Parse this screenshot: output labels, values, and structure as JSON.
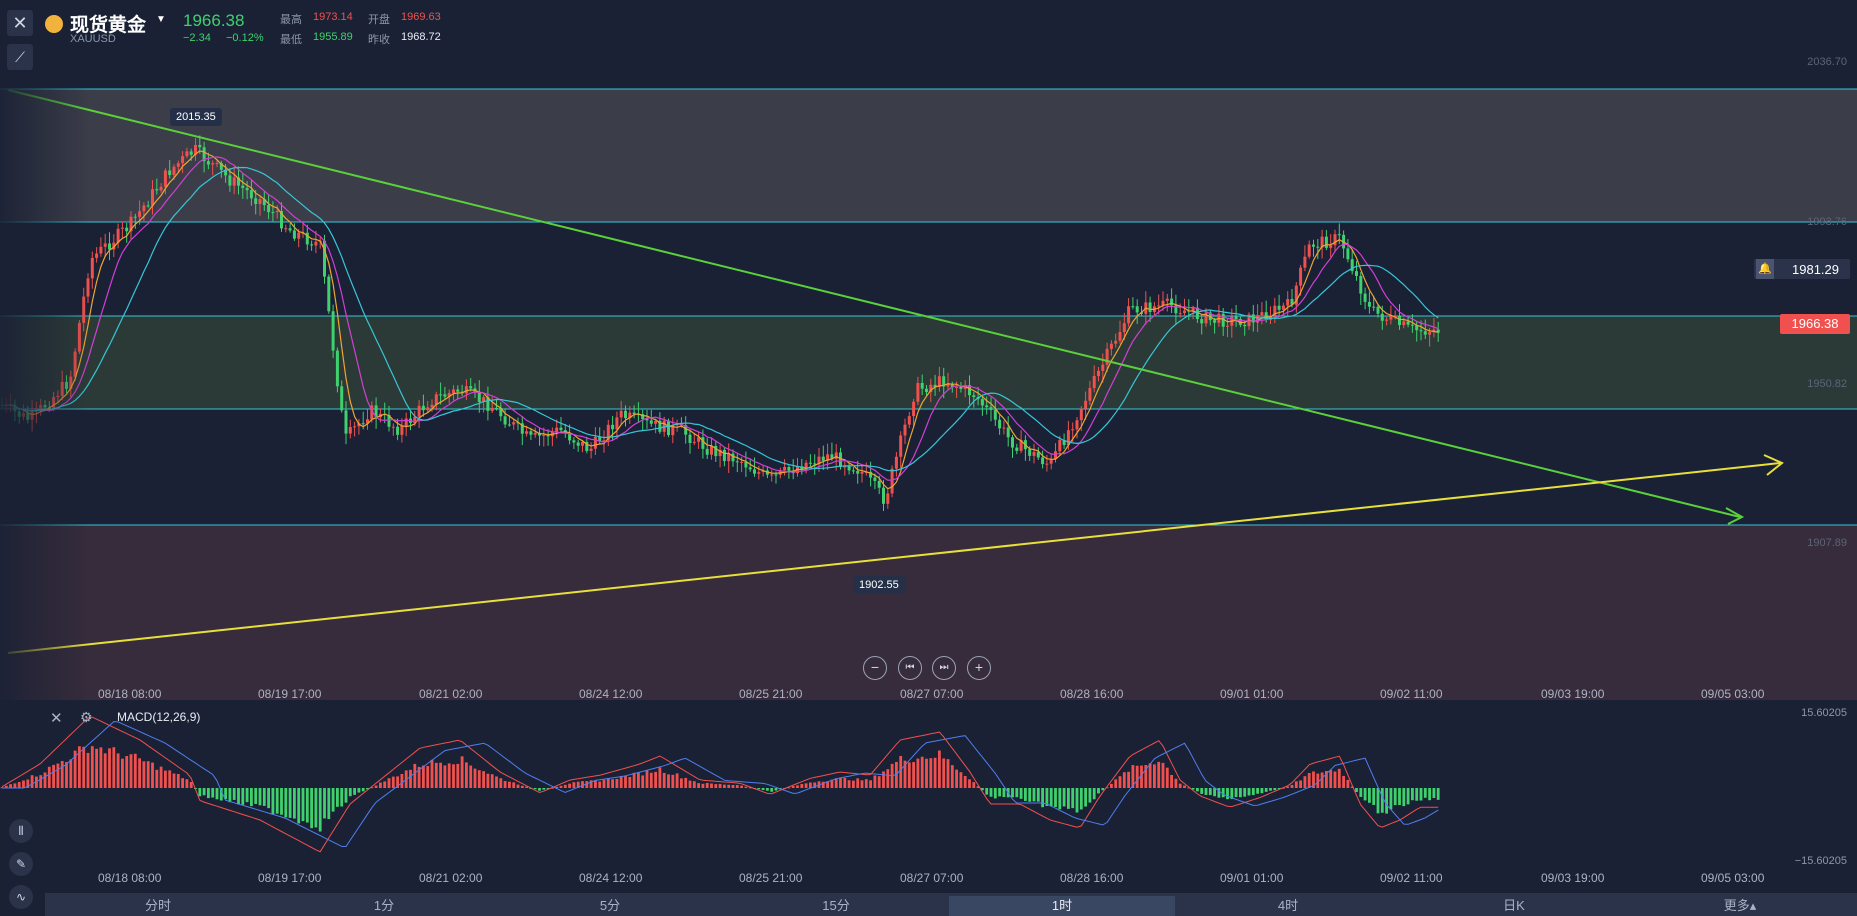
{
  "header": {
    "title": "现货黄金",
    "symbol": "XAUUSD",
    "price": "1966.38",
    "change": "−2.34",
    "change_pct": "−0.12%",
    "high_label": "最高",
    "high": "1973.14",
    "open_label": "开盘",
    "open": "1969.63",
    "low_label": "最低",
    "low": "1955.89",
    "prev_close_label": "昨收",
    "prev_close": "1968.72"
  },
  "price_axis": {
    "levels": [
      "2036.70",
      "1993.76",
      "1950.82",
      "1907.89"
    ],
    "alert_price": "1981.29",
    "current_price": "1966.38"
  },
  "annotations": {
    "high_marker": "2015.35",
    "low_marker": "1902.55"
  },
  "x_axis": [
    "08/18 08:00",
    "08/19 17:00",
    "08/21 02:00",
    "08/24 12:00",
    "08/25 21:00",
    "08/27 07:00",
    "08/28 16:00",
    "09/01 01:00",
    "09/02 11:00",
    "09/03 19:00",
    "09/05 03:00"
  ],
  "macd": {
    "label": "MACD(12,26,9)",
    "top": "15.60205",
    "bottom": "−15.60205"
  },
  "tabs": [
    "分时",
    "1分",
    "5分",
    "15分",
    "1时",
    "4时",
    "日K",
    "更多▴"
  ],
  "active_tab": "1时",
  "colors": {
    "up": "#f0514e",
    "down": "#3fd16d",
    "bg": "#1a2135",
    "cyan": "#37c6d6",
    "green_line": "#5ad13a",
    "yellow_line": "#e8e03a"
  }
}
